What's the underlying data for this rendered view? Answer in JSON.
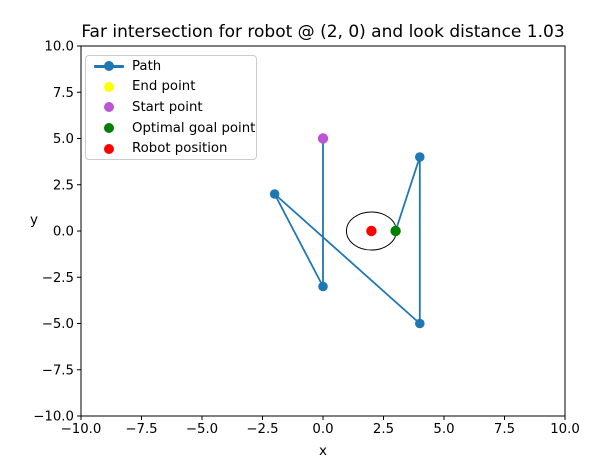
{
  "chart_data": {
    "type": "line",
    "title": "Far intersection for robot @ (2, 0) and look distance 1.03",
    "xlabel": "x",
    "ylabel": "y",
    "xlim": [
      -10,
      10
    ],
    "ylim": [
      -10,
      10
    ],
    "xticks": {
      "values": [
        -10,
        -7.5,
        -5,
        -2.5,
        0,
        2.5,
        5,
        7.5,
        10
      ],
      "labels": [
        "−10.0",
        "−7.5",
        "−5.0",
        "−2.5",
        "0.0",
        "2.5",
        "5.0",
        "7.5",
        "10.0"
      ]
    },
    "yticks": {
      "values": [
        10,
        7.5,
        5,
        2.5,
        0,
        -2.5,
        -5,
        -7.5,
        -10
      ],
      "labels": [
        "10.0",
        "7.5",
        "5.0",
        "2.5",
        "0.0",
        "−2.5",
        "−5.0",
        "−7.5",
        "−10.0"
      ]
    },
    "grid": false,
    "legend_position": "upper left",
    "series": [
      {
        "name": "Path",
        "type": "line",
        "color": "#1f77b4",
        "marker": "circle",
        "points": [
          [
            0,
            5
          ],
          [
            0,
            -3
          ],
          [
            -2,
            2
          ],
          [
            4,
            -5
          ],
          [
            4,
            4
          ],
          [
            3,
            0
          ]
        ]
      },
      {
        "name": "End point",
        "type": "scatter",
        "color": "#ffff00",
        "points": [
          [
            3,
            0
          ]
        ]
      },
      {
        "name": "Start point",
        "type": "scatter",
        "color": "#ba55d3",
        "points": [
          [
            0,
            5
          ]
        ]
      },
      {
        "name": "Optimal goal point",
        "type": "scatter",
        "color": "#008000",
        "points": [
          [
            3,
            0
          ]
        ]
      },
      {
        "name": "Robot position",
        "type": "scatter",
        "color": "#ff0000",
        "points": [
          [
            2,
            0
          ]
        ]
      }
    ],
    "annotations": [
      {
        "type": "circle",
        "center": [
          2,
          0
        ],
        "radius": 1.03,
        "stroke": "#000000",
        "fill": "none"
      }
    ],
    "robot_position": [
      2,
      0
    ],
    "look_distance": 1.03
  }
}
